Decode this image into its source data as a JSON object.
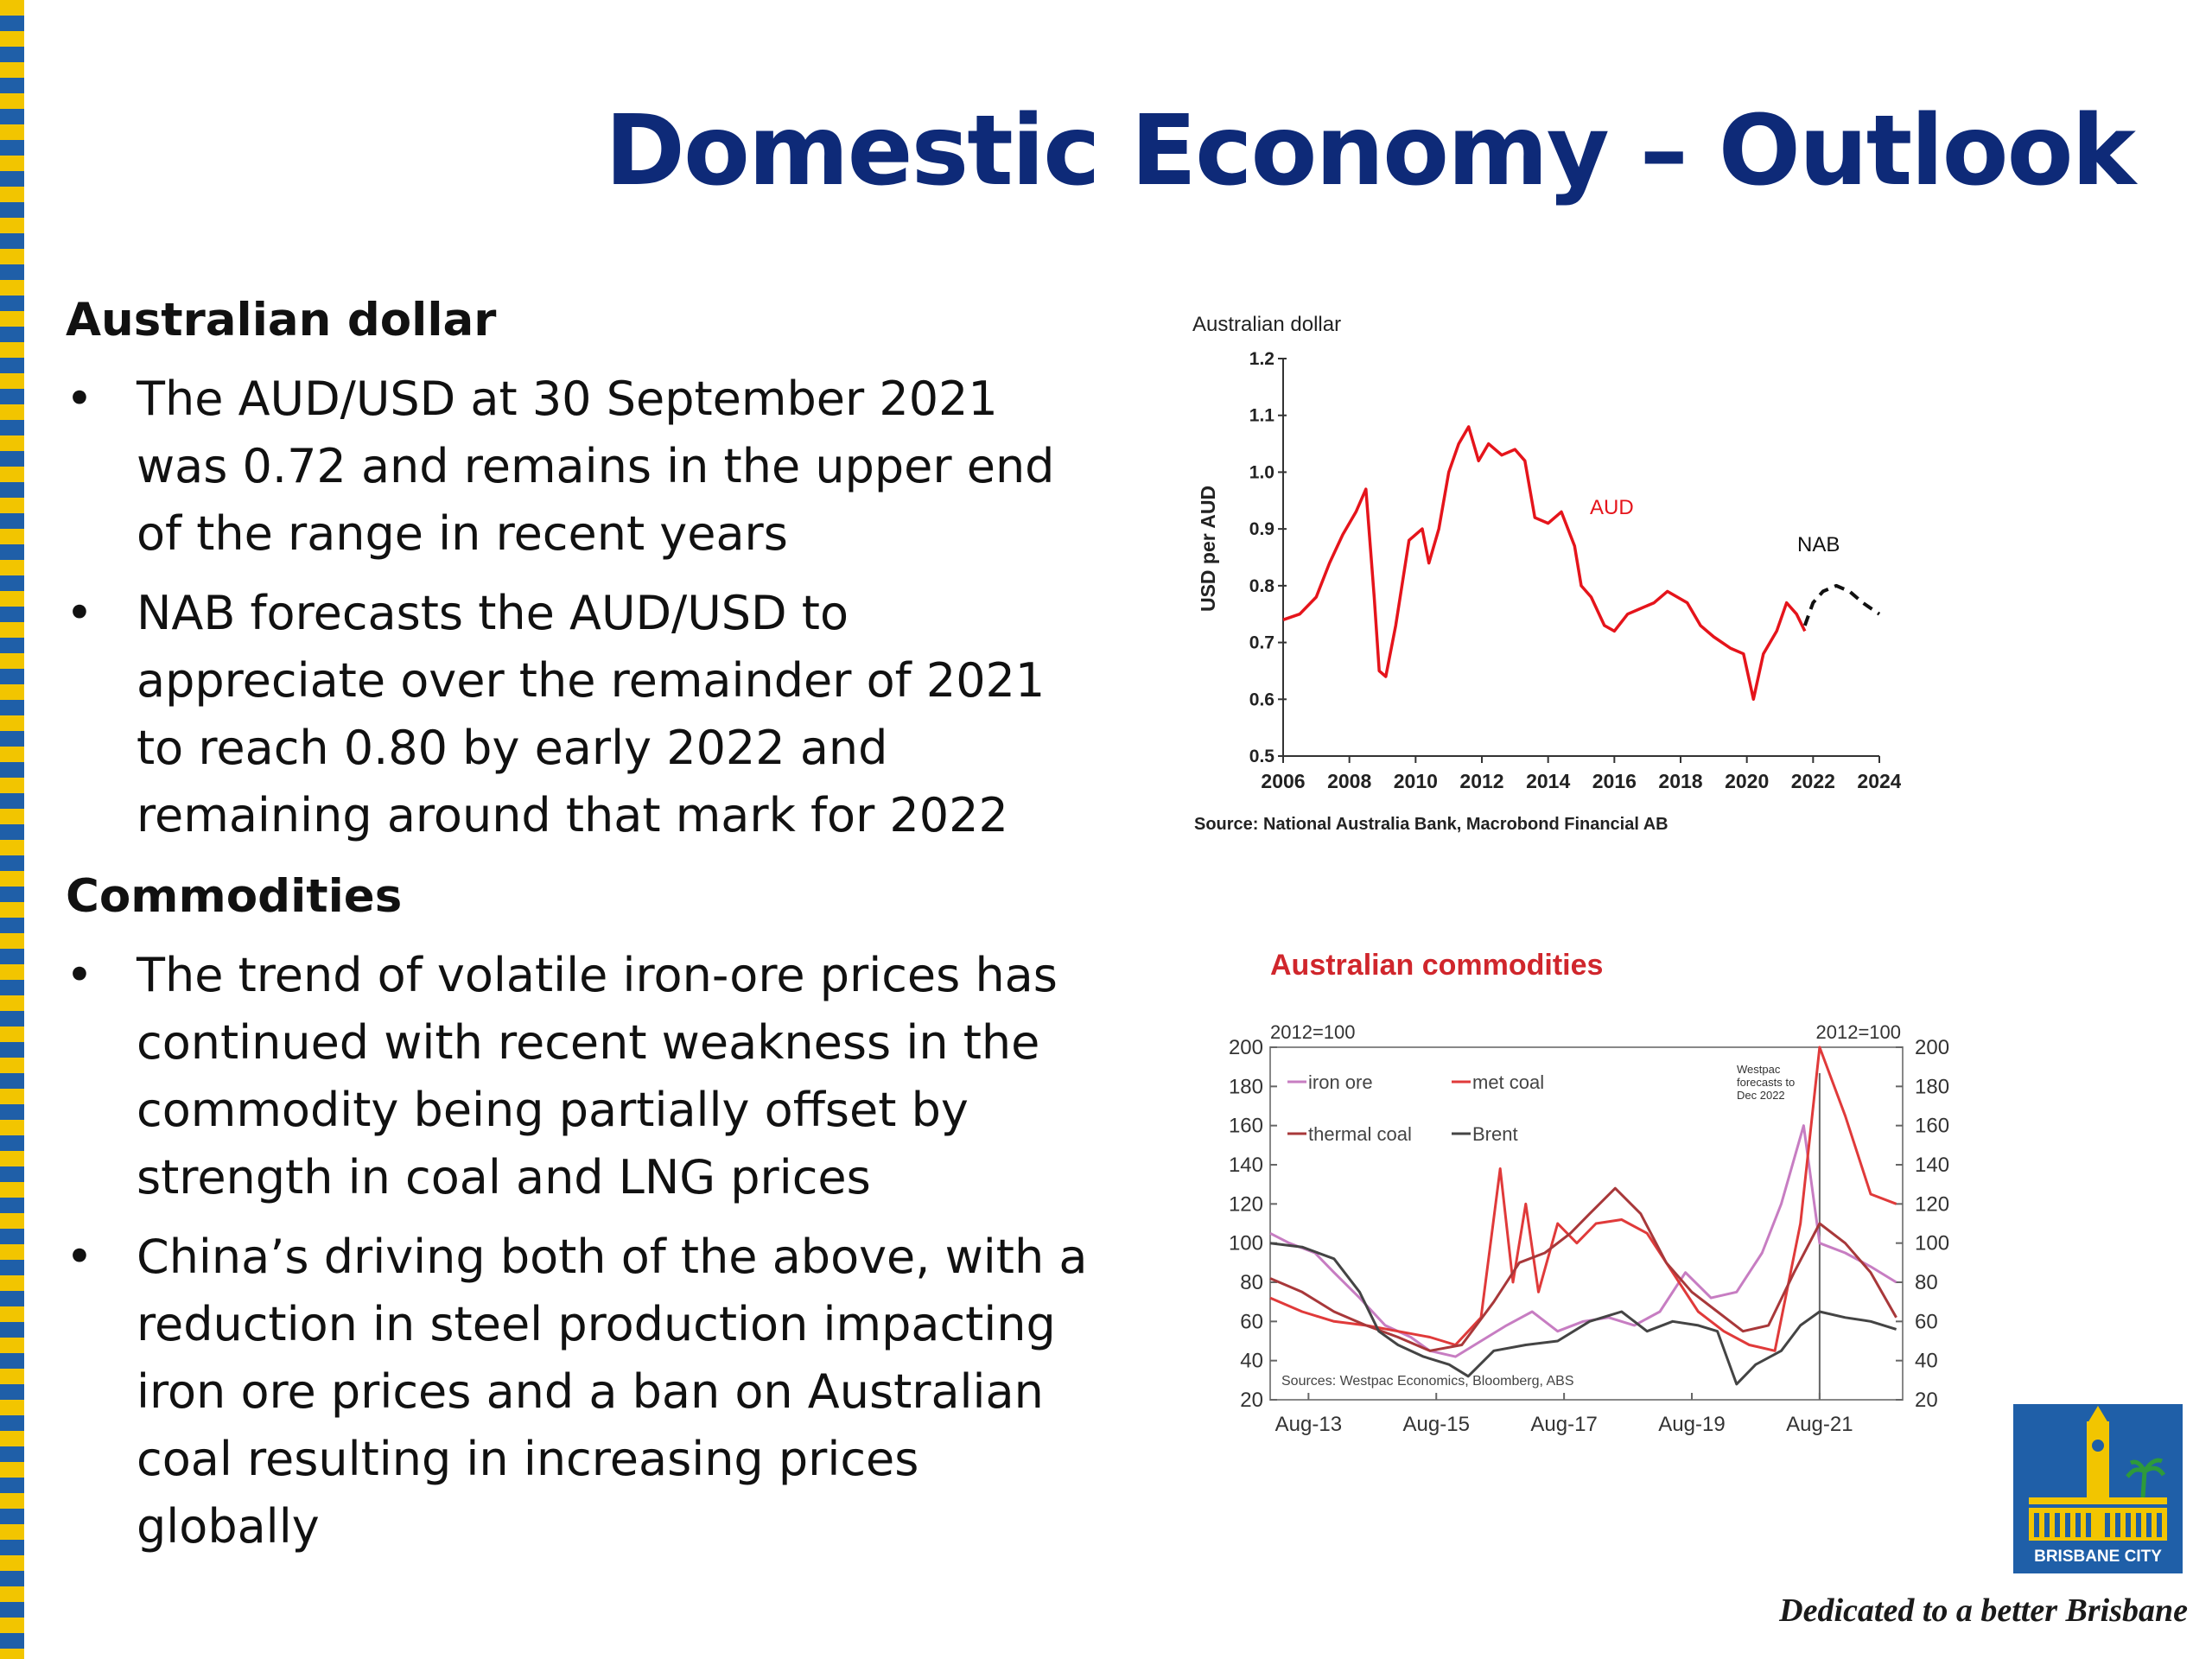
{
  "slide": {
    "title": "Domestic Economy – Outlook",
    "tagline": "Dedicated to a better Brisbane",
    "logo_text": "BRISBANE CITY",
    "colors": {
      "title": "#0e2a78",
      "stripe_yellow": "#f2c500",
      "stripe_blue": "#1f5fa8",
      "aud_line": "#e5141b"
    }
  },
  "sections": [
    {
      "heading": "Australian dollar",
      "bullets": [
        "The AUD/USD at 30 September 2021 was 0.72 and remains in the upper end of the range in recent years",
        "NAB forecasts the AUD/USD to appreciate over the remainder of 2021 to reach 0.80 by early 2022 and remaining around that mark for 2022"
      ]
    },
    {
      "heading": "Commodities",
      "bullets": [
        "The trend of volatile iron-ore prices has continued with recent weakness in the commodity being partially offset by strength in coal and LNG prices",
        "China’s driving both of the above, with a reduction in steel production impacting iron ore prices and a ban on Australian coal resulting in increasing prices globally"
      ]
    }
  ],
  "chart_data": [
    {
      "type": "line",
      "title": "Australian dollar",
      "ylabel": "USD per AUD",
      "source": "Source: National Australia Bank, Macrobond Financial AB",
      "xlim": [
        2006,
        2024
      ],
      "ylim": [
        0.5,
        1.2
      ],
      "xticks": [
        "2006",
        "2008",
        "2010",
        "2012",
        "2014",
        "2016",
        "2018",
        "2020",
        "2022",
        "2024"
      ],
      "yticks": [
        "0.5",
        "0.6",
        "0.7",
        "0.8",
        "0.9",
        "1.0",
        "1.1",
        "1.2"
      ],
      "grid": false,
      "series": [
        {
          "name": "AUD",
          "color": "#e5141b",
          "style": "solid",
          "x": [
            2006.0,
            2006.5,
            2007.0,
            2007.4,
            2007.8,
            2008.2,
            2008.5,
            2008.75,
            2008.9,
            2009.1,
            2009.4,
            2009.8,
            2010.2,
            2010.4,
            2010.7,
            2011.0,
            2011.3,
            2011.6,
            2011.9,
            2012.2,
            2012.6,
            2013.0,
            2013.3,
            2013.6,
            2014.0,
            2014.4,
            2014.8,
            2015.0,
            2015.3,
            2015.7,
            2016.0,
            2016.4,
            2016.8,
            2017.2,
            2017.6,
            2017.9,
            2018.2,
            2018.6,
            2019.0,
            2019.5,
            2019.9,
            2020.2,
            2020.5,
            2020.9,
            2021.2,
            2021.5,
            2021.75
          ],
          "y": [
            0.74,
            0.75,
            0.78,
            0.84,
            0.89,
            0.93,
            0.97,
            0.78,
            0.65,
            0.64,
            0.73,
            0.88,
            0.9,
            0.84,
            0.9,
            1.0,
            1.05,
            1.08,
            1.02,
            1.05,
            1.03,
            1.04,
            1.02,
            0.92,
            0.91,
            0.93,
            0.87,
            0.8,
            0.78,
            0.73,
            0.72,
            0.75,
            0.76,
            0.77,
            0.79,
            0.78,
            0.77,
            0.73,
            0.71,
            0.69,
            0.68,
            0.6,
            0.68,
            0.72,
            0.77,
            0.75,
            0.72
          ]
        },
        {
          "name": "NAB",
          "color": "#111111",
          "style": "dashed",
          "x": [
            2021.75,
            2022.0,
            2022.3,
            2022.7,
            2023.1,
            2023.5,
            2024.0
          ],
          "y": [
            0.73,
            0.77,
            0.79,
            0.8,
            0.79,
            0.77,
            0.75
          ]
        }
      ],
      "annotations": [
        "AUD",
        "NAB"
      ]
    },
    {
      "type": "line",
      "title": "Australian commodities",
      "ylabel_left": "2012=100",
      "ylabel_right": "2012=100",
      "source": "Sources: Westpac Economics, Bloomberg, ABS",
      "forecast_note": [
        "Westpac",
        "forecasts to",
        "Dec 2022"
      ],
      "categories": [
        "Aug-13",
        "Aug-15",
        "Aug-17",
        "Aug-19",
        "Aug-21"
      ],
      "xlim": [
        2013.0,
        2022.9
      ],
      "ylim": [
        20,
        200
      ],
      "yticks": [
        "20",
        "40",
        "60",
        "80",
        "100",
        "120",
        "140",
        "160",
        "180",
        "200"
      ],
      "forecast_start": 2021.6,
      "grid": false,
      "legend": "top-left",
      "series": [
        {
          "name": "iron ore",
          "color": "#c77dc2",
          "x": [
            2013.0,
            2013.3,
            2013.7,
            2014.0,
            2014.4,
            2014.8,
            2015.2,
            2015.5,
            2015.9,
            2016.3,
            2016.7,
            2017.1,
            2017.5,
            2017.9,
            2018.3,
            2018.7,
            2019.1,
            2019.5,
            2019.9,
            2020.3,
            2020.7,
            2021.0,
            2021.35,
            2021.6,
            2022.0,
            2022.4,
            2022.8
          ],
          "y": [
            105,
            100,
            95,
            85,
            72,
            58,
            52,
            45,
            42,
            50,
            58,
            65,
            55,
            60,
            62,
            58,
            65,
            85,
            72,
            75,
            95,
            120,
            160,
            100,
            95,
            88,
            80
          ]
        },
        {
          "name": "met coal",
          "color": "#e03a3a",
          "x": [
            2013.0,
            2013.5,
            2014.0,
            2014.5,
            2015.0,
            2015.5,
            2015.9,
            2016.3,
            2016.6,
            2016.8,
            2017.0,
            2017.2,
            2017.5,
            2017.8,
            2018.1,
            2018.5,
            2018.9,
            2019.3,
            2019.7,
            2020.1,
            2020.5,
            2020.9,
            2021.3,
            2021.6,
            2022.0,
            2022.4,
            2022.8
          ],
          "y": [
            72,
            65,
            60,
            58,
            55,
            52,
            48,
            62,
            138,
            80,
            120,
            75,
            110,
            100,
            110,
            112,
            105,
            85,
            65,
            55,
            48,
            45,
            110,
            200,
            165,
            125,
            120
          ]
        },
        {
          "name": "thermal coal",
          "color": "#a8383a",
          "x": [
            2013.0,
            2013.5,
            2014.0,
            2014.5,
            2015.0,
            2015.5,
            2016.0,
            2016.5,
            2016.9,
            2017.3,
            2017.7,
            2018.0,
            2018.4,
            2018.8,
            2019.2,
            2019.6,
            2020.0,
            2020.4,
            2020.8,
            2021.2,
            2021.6,
            2022.0,
            2022.4,
            2022.8
          ],
          "y": [
            82,
            75,
            65,
            58,
            52,
            45,
            48,
            70,
            90,
            95,
            105,
            115,
            128,
            115,
            90,
            75,
            65,
            55,
            58,
            85,
            110,
            100,
            85,
            62
          ]
        },
        {
          "name": "Brent",
          "color": "#444444",
          "x": [
            2013.0,
            2013.5,
            2014.0,
            2014.4,
            2014.7,
            2015.0,
            2015.4,
            2015.8,
            2016.1,
            2016.5,
            2017.0,
            2017.5,
            2018.0,
            2018.5,
            2018.9,
            2019.3,
            2019.7,
            2020.0,
            2020.3,
            2020.6,
            2021.0,
            2021.3,
            2021.6,
            2022.0,
            2022.4,
            2022.8
          ],
          "y": [
            100,
            98,
            92,
            75,
            55,
            48,
            42,
            38,
            32,
            45,
            48,
            50,
            60,
            65,
            55,
            60,
            58,
            55,
            28,
            38,
            45,
            58,
            65,
            62,
            60,
            56
          ]
        }
      ]
    }
  ]
}
